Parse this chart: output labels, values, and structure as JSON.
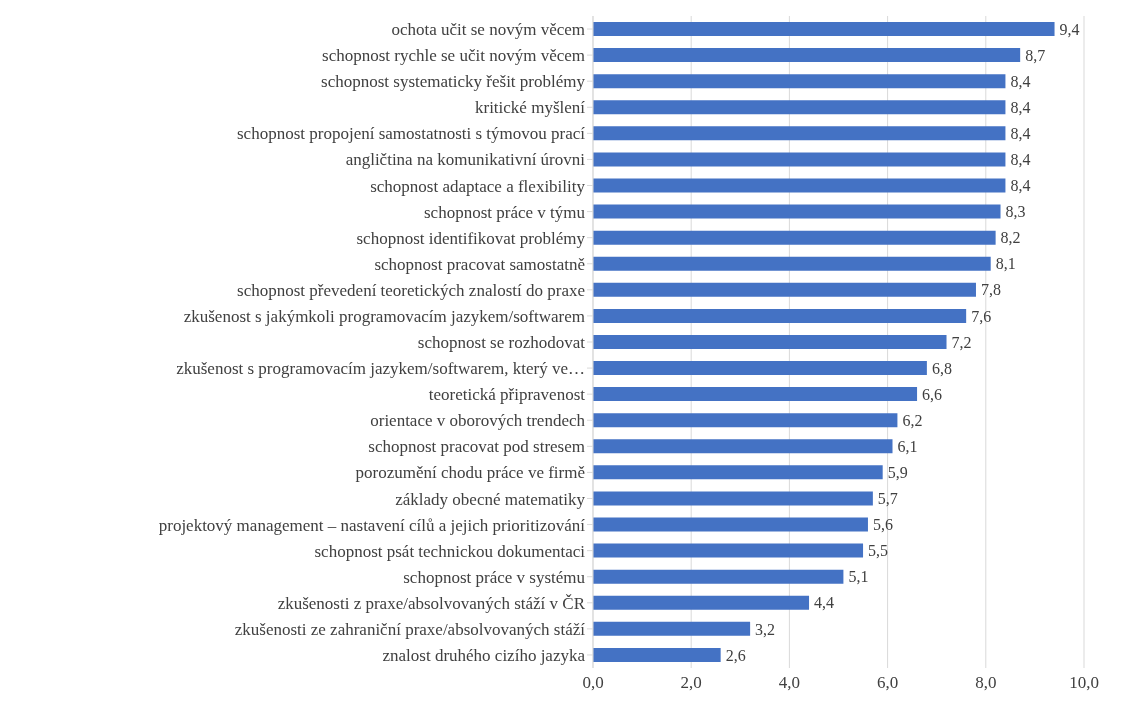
{
  "chart_data": {
    "type": "bar",
    "orientation": "horizontal",
    "categories": [
      "ochota učit se novým věcem",
      "schopnost rychle se učit novým věcem",
      "schopnost systematicky řešit problémy",
      "kritické myšlení",
      "schopnost propojení samostatnosti s týmovou prací",
      "angličtina na komunikativní úrovni",
      "schopnost adaptace a flexibility",
      "schopnost práce v týmu",
      "schopnost identifikovat problémy",
      "schopnost pracovat samostatně",
      "schopnost převedení teoretických znalostí do praxe",
      "zkušenost s jakýmkoli programovacím jazykem/softwarem",
      "schopnost se rozhodovat",
      "zkušenost s programovacím jazykem/softwarem, který ve…",
      "teoretická připravenost",
      "orientace v oborových trendech",
      "schopnost pracovat pod stresem",
      "porozumění chodu práce ve firmě",
      "základy obecné matematiky",
      "projektový management – nastavení cílů a jejich prioritizování",
      "schopnost psát technickou dokumentaci",
      "schopnost práce v systému",
      "zkušenosti z praxe/absolvovaných stáží v ČR",
      "zkušenosti ze zahraniční praxe/absolvovaných stáží",
      "znalost druhého cizího jazyka"
    ],
    "values": [
      9.4,
      8.7,
      8.4,
      8.4,
      8.4,
      8.4,
      8.4,
      8.3,
      8.2,
      8.1,
      7.8,
      7.6,
      7.2,
      6.8,
      6.6,
      6.2,
      6.1,
      5.9,
      5.7,
      5.6,
      5.5,
      5.1,
      4.4,
      3.2,
      2.6
    ],
    "color": "#4472c4",
    "xlim": [
      0,
      10
    ],
    "xticks": [
      {
        "value": 0,
        "label": "0,0"
      },
      {
        "value": 2,
        "label": "2,0"
      },
      {
        "value": 4,
        "label": "4,0"
      },
      {
        "value": 6,
        "label": "6,0"
      },
      {
        "value": 8,
        "label": "8,0"
      },
      {
        "value": 10,
        "label": "10,0"
      }
    ],
    "value_labels": [
      "9,4",
      "8,7",
      "8,4",
      "8,4",
      "8,4",
      "8,4",
      "8,4",
      "8,3",
      "8,2",
      "8,1",
      "7,8",
      "7,6",
      "7,2",
      "6,8",
      "6,6",
      "6,2",
      "6,1",
      "5,9",
      "5,7",
      "5,6",
      "5,5",
      "5,1",
      "4,4",
      "3,2",
      "2,6"
    ],
    "grid": "x"
  }
}
